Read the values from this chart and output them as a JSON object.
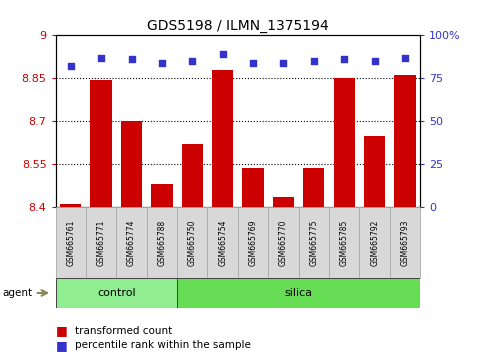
{
  "title": "GDS5198 / ILMN_1375194",
  "samples": [
    "GSM665761",
    "GSM665771",
    "GSM665774",
    "GSM665788",
    "GSM665750",
    "GSM665754",
    "GSM665769",
    "GSM665770",
    "GSM665775",
    "GSM665785",
    "GSM665792",
    "GSM665793"
  ],
  "groups": [
    "control",
    "control",
    "control",
    "control",
    "silica",
    "silica",
    "silica",
    "silica",
    "silica",
    "silica",
    "silica",
    "silica"
  ],
  "transformed_count": [
    8.41,
    8.845,
    8.7,
    8.48,
    8.62,
    8.88,
    8.535,
    8.435,
    8.535,
    8.852,
    8.65,
    8.86
  ],
  "percentile_rank": [
    82,
    87,
    86,
    84,
    85,
    89,
    84,
    84,
    85,
    86,
    85,
    87
  ],
  "ylim_left": [
    8.4,
    9.0
  ],
  "ylim_right": [
    0,
    100
  ],
  "yticks_left": [
    8.4,
    8.55,
    8.7,
    8.85,
    9.0
  ],
  "ytick_labels_left": [
    "8.4",
    "8.55",
    "8.7",
    "8.85",
    "9"
  ],
  "yticks_right": [
    0,
    25,
    50,
    75,
    100
  ],
  "ytick_labels_right": [
    "0",
    "25",
    "50",
    "75",
    "100%"
  ],
  "bar_color": "#cc0000",
  "dot_color": "#3333cc",
  "control_color": "#90ee90",
  "silica_color": "#66dd55",
  "grid_color": "#000000",
  "label_color_left": "#cc0000",
  "label_color_right": "#3333cc",
  "bg_color": "#d8d8d8",
  "n_control": 4,
  "n_silica": 8
}
